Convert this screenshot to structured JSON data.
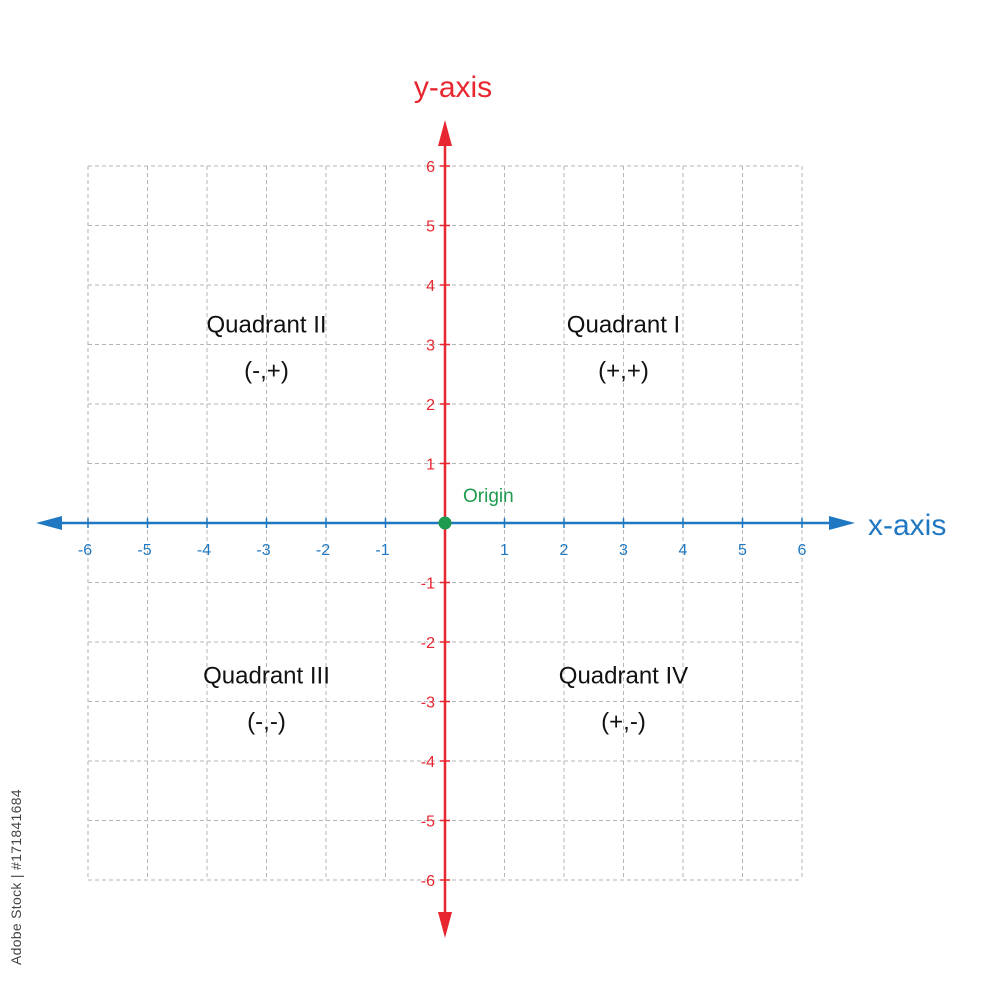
{
  "chart_data": {
    "type": "scatter",
    "xlabel": "x-axis",
    "ylabel": "y-axis",
    "xlim": [
      -6,
      6
    ],
    "ylim": [
      -6,
      6
    ],
    "grid": true,
    "x_ticks": [
      "-6",
      "-5",
      "-4",
      "-3",
      "-2",
      "-1",
      "1",
      "2",
      "3",
      "4",
      "5",
      "6"
    ],
    "y_ticks": [
      "6",
      "5",
      "4",
      "3",
      "2",
      "1",
      "-1",
      "-2",
      "-3",
      "-4",
      "-5",
      "-6"
    ],
    "points": [
      {
        "label": "Origin",
        "x": 0,
        "y": 0
      }
    ],
    "quadrants": [
      {
        "name": "Quadrant I",
        "signs": "(+,+)",
        "x": 3,
        "y": 3.2
      },
      {
        "name": "Quadrant II",
        "signs": "(-,+)",
        "x": -3,
        "y": 3.2
      },
      {
        "name": "Quadrant III",
        "signs": "(-,-)",
        "x": -3,
        "y": -2.7
      },
      {
        "name": "Quadrant IV",
        "signs": "(+,-)",
        "x": 3,
        "y": -2.7
      }
    ]
  },
  "colors": {
    "x_axis": "#1f78c1",
    "y_axis": "#e8262f",
    "origin": "#1d9a4d",
    "grid": "#b5b5b5",
    "text": "#111111"
  },
  "credit": "Adobe Stock | #171841684"
}
